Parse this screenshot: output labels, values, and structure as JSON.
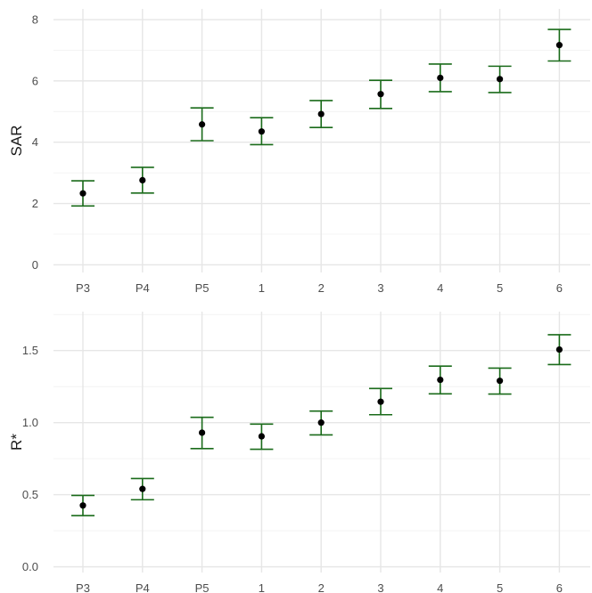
{
  "chart_data": [
    {
      "type": "scatter",
      "title": "",
      "xlabel": "",
      "ylabel": "SAR",
      "categories": [
        "P3",
        "P4",
        "P5",
        "1",
        "2",
        "3",
        "4",
        "5",
        "6"
      ],
      "values": [
        2.33,
        2.76,
        4.58,
        4.35,
        4.92,
        5.57,
        6.1,
        6.06,
        7.17
      ],
      "lower": [
        1.92,
        2.34,
        4.05,
        3.92,
        4.48,
        5.1,
        5.65,
        5.62,
        6.65
      ],
      "upper": [
        2.74,
        3.18,
        5.12,
        4.8,
        5.36,
        6.02,
        6.55,
        6.48,
        7.68
      ],
      "ylim": [
        -0.25,
        8.35
      ],
      "yticks": [
        "0",
        "2",
        "4",
        "6",
        "8"
      ],
      "ytick_values": [
        0,
        2,
        4,
        6,
        8
      ],
      "grid": true,
      "point_color": "#000000",
      "errorbar_color": "#1a6b1a"
    },
    {
      "type": "scatter",
      "title": "",
      "xlabel": "",
      "ylabel": "R*",
      "categories": [
        "P3",
        "P4",
        "P5",
        "1",
        "2",
        "3",
        "4",
        "5",
        "6"
      ],
      "values": [
        0.425,
        0.54,
        0.93,
        0.905,
        1.0,
        1.145,
        1.297,
        1.29,
        1.507
      ],
      "lower": [
        0.355,
        0.465,
        0.82,
        0.815,
        0.915,
        1.055,
        1.2,
        1.198,
        1.403
      ],
      "upper": [
        0.495,
        0.612,
        1.037,
        0.99,
        1.08,
        1.237,
        1.392,
        1.378,
        1.61
      ],
      "ylim": [
        -0.04,
        1.77
      ],
      "yticks": [
        "0.0",
        "0.5",
        "1.0",
        "1.5"
      ],
      "ytick_values": [
        0.0,
        0.5,
        1.0,
        1.5
      ],
      "grid": true,
      "point_color": "#000000",
      "errorbar_color": "#1a6b1a"
    }
  ]
}
